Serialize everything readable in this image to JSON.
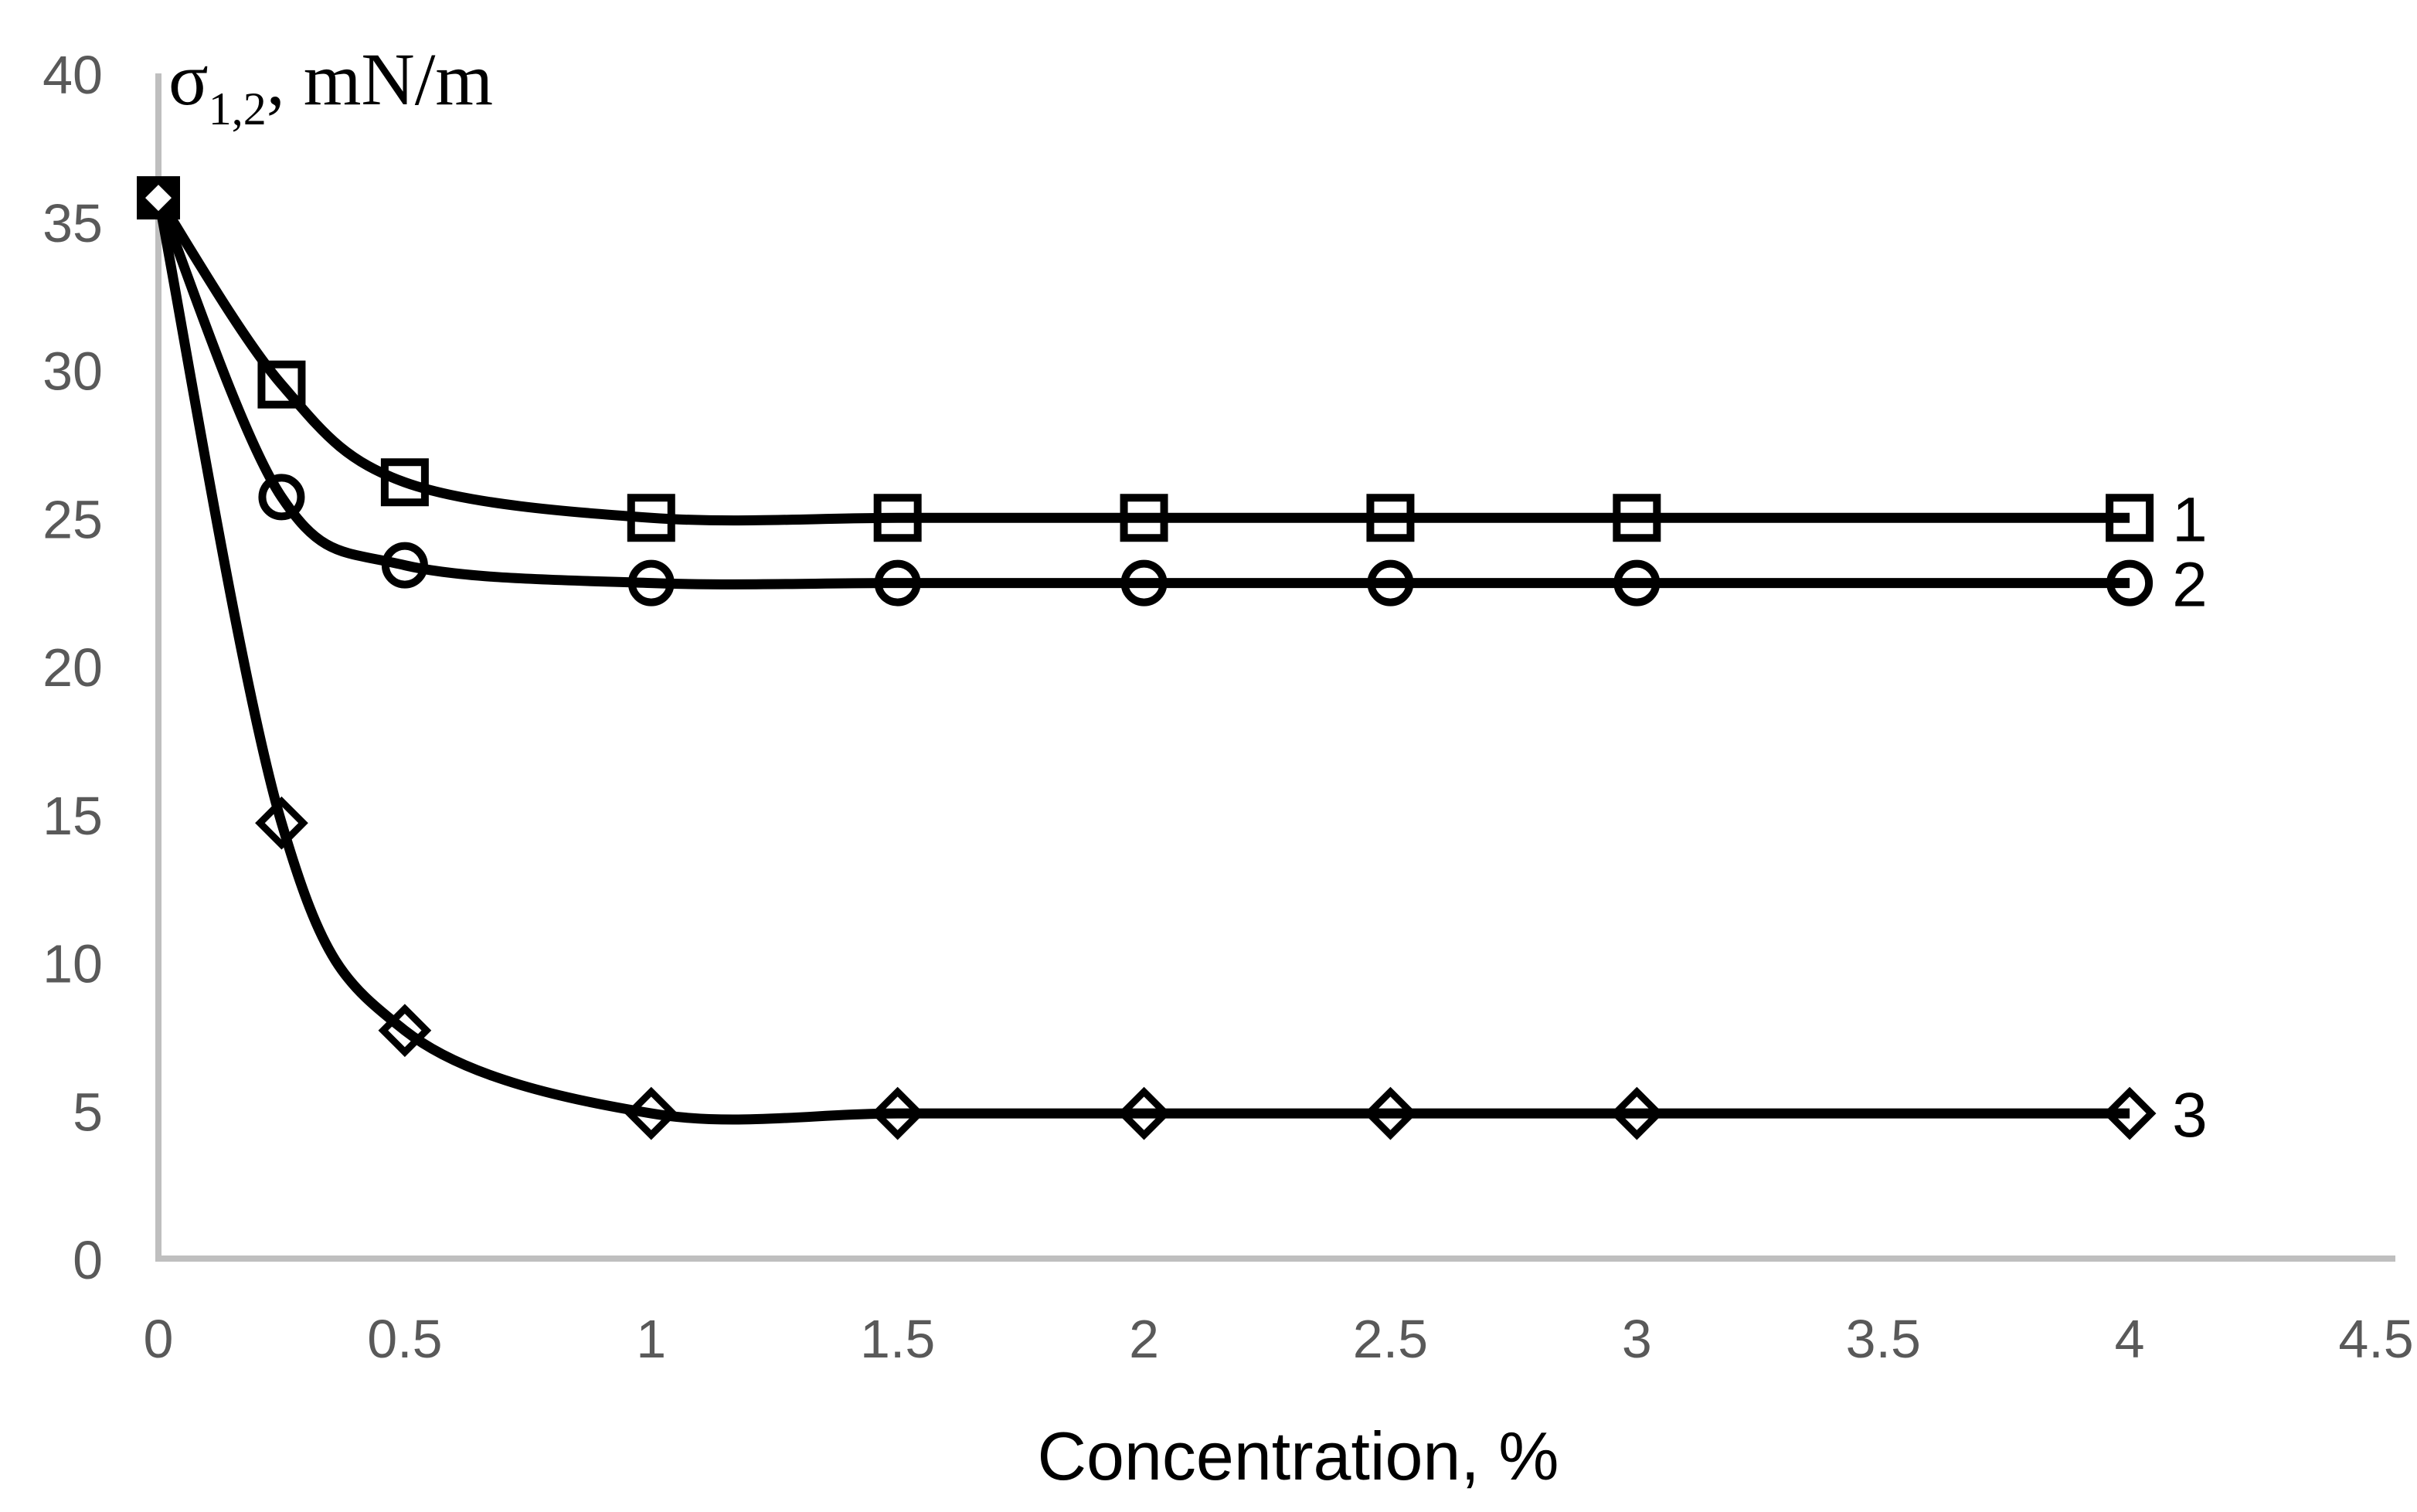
{
  "chart_data": {
    "type": "line",
    "title": "",
    "ylabel": "σ1,2, mN/m",
    "ylabel_parts": {
      "symbol": "σ",
      "subscript": "1,2",
      "rest": ", mN/m"
    },
    "xlabel": "Concentration, %",
    "x": [
      0,
      0.25,
      0.5,
      1,
      1.5,
      2,
      2.5,
      3,
      4
    ],
    "series": [
      {
        "name": "1",
        "marker": "square",
        "values": [
          35.8,
          29.5,
          26.2,
          25.0,
          25.0,
          25.0,
          25.0,
          25.0,
          25.0
        ]
      },
      {
        "name": "2",
        "marker": "circle",
        "values": [
          35.8,
          25.7,
          23.4,
          22.8,
          22.8,
          22.8,
          22.8,
          22.8,
          22.8
        ]
      },
      {
        "name": "3",
        "marker": "diamond",
        "values": [
          35.8,
          14.7,
          7.7,
          4.9,
          4.9,
          4.9,
          4.9,
          4.9,
          4.9
        ]
      }
    ],
    "x_tick_labels": [
      "0",
      "0.5",
      "1",
      "1.5",
      "2",
      "2.5",
      "3",
      "3.5",
      "4",
      "4.5"
    ],
    "y_tick_labels": [
      "0",
      "5",
      "10",
      "15",
      "20",
      "25",
      "30",
      "35",
      "40"
    ],
    "xlim": [
      0,
      4.5
    ],
    "ylim": [
      0,
      40
    ],
    "grid": false,
    "legend_position": "line-end",
    "smooth_lines": true,
    "colors": {
      "series": "#000000",
      "axis": "#BFBFBF",
      "tick_labels": "#595959",
      "axis_titles": "#000000",
      "background": "#FFFFFF"
    }
  }
}
